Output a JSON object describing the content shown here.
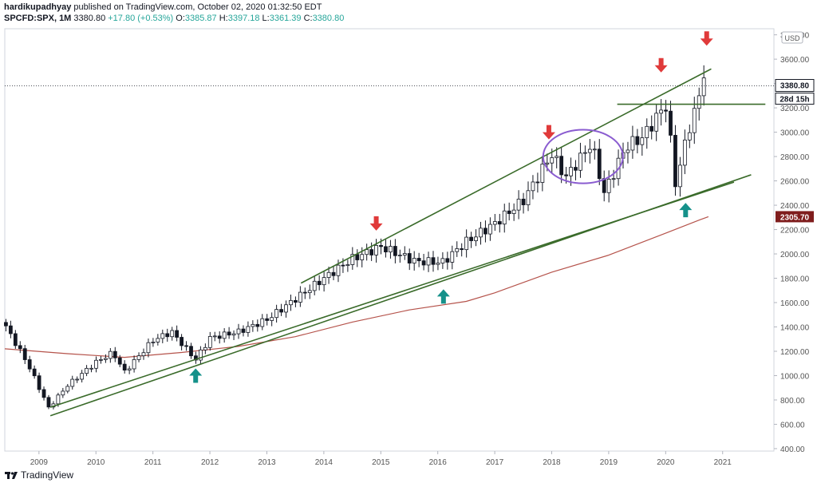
{
  "header": {
    "author": "hardikupadhyay",
    "published_text": "published on TradingView.com, October 02, 2020 01:32:50 EDT",
    "symbol": "SPCFD:SPX, 1M",
    "last": "3380.80",
    "change": "+17.80 (+0.53%)",
    "o_label": "O:",
    "o": "3385.87",
    "h_label": "H:",
    "h": "3397.18",
    "l_label": "L:",
    "l": "3361.39",
    "c_label": "C:",
    "c": "3380.80"
  },
  "footer": {
    "brand": "TradingView"
  },
  "colors": {
    "up": "#131722",
    "down": "#131722",
    "trend": "#3a6b2a",
    "ma": "#b5534b",
    "arrow_up": "#15918a",
    "arrow_down": "#e03a3a",
    "circle": "#8a5cd0",
    "last_tag": "#131722",
    "ma_tag": "#7f1d1d"
  },
  "chart_data": {
    "type": "candlestick",
    "currency": "USD",
    "y_ticks": [
      400,
      600,
      800,
      1000,
      1200,
      1400,
      1600,
      1800,
      2000,
      2200,
      2400,
      2600,
      2800,
      3000,
      3200,
      3400,
      3600,
      3800
    ],
    "x_ticks": [
      "2009",
      "2010",
      "2011",
      "2012",
      "2013",
      "2014",
      "2015",
      "2016",
      "2017",
      "2018",
      "2019",
      "2020",
      "2021"
    ],
    "last_price_label": "3380.80",
    "countdown_label": "28d 15h",
    "ma_price_label": "2305.70",
    "ylim": [
      380,
      3850
    ],
    "xlim": [
      2008.4,
      2021.9
    ],
    "candles_yearly_anchors": [
      {
        "t": 2008.42,
        "c": 1400
      },
      {
        "t": 2008.8,
        "c": 1100
      },
      {
        "t": 2009.17,
        "c": 735
      },
      {
        "t": 2009.5,
        "c": 920
      },
      {
        "t": 2010.0,
        "c": 1110
      },
      {
        "t": 2010.3,
        "c": 1190
      },
      {
        "t": 2010.5,
        "c": 1030
      },
      {
        "t": 2011.0,
        "c": 1290
      },
      {
        "t": 2011.33,
        "c": 1360
      },
      {
        "t": 2011.75,
        "c": 1130
      },
      {
        "t": 2012.0,
        "c": 1310
      },
      {
        "t": 2012.5,
        "c": 1360
      },
      {
        "t": 2013.0,
        "c": 1460
      },
      {
        "t": 2013.5,
        "c": 1630
      },
      {
        "t": 2014.0,
        "c": 1800
      },
      {
        "t": 2014.5,
        "c": 1960
      },
      {
        "t": 2015.0,
        "c": 2060
      },
      {
        "t": 2015.6,
        "c": 1940
      },
      {
        "t": 2016.08,
        "c": 1930
      },
      {
        "t": 2016.5,
        "c": 2100
      },
      {
        "t": 2017.0,
        "c": 2250
      },
      {
        "t": 2017.5,
        "c": 2440
      },
      {
        "t": 2018.0,
        "c": 2820
      },
      {
        "t": 2018.25,
        "c": 2630
      },
      {
        "t": 2018.7,
        "c": 2910
      },
      {
        "t": 2018.92,
        "c": 2500
      },
      {
        "t": 2019.3,
        "c": 2880
      },
      {
        "t": 2019.6,
        "c": 2960
      },
      {
        "t": 2020.0,
        "c": 3230
      },
      {
        "t": 2020.08,
        "c": 2950
      },
      {
        "t": 2020.17,
        "c": 2580
      },
      {
        "t": 2020.42,
        "c": 3050
      },
      {
        "t": 2020.58,
        "c": 3270
      },
      {
        "t": 2020.67,
        "c": 3500
      },
      {
        "t": 2020.75,
        "c": 3380
      }
    ],
    "moving_average": [
      {
        "t": 2008.4,
        "v": 1220
      },
      {
        "t": 2009.5,
        "v": 1180
      },
      {
        "t": 2010.5,
        "v": 1150
      },
      {
        "t": 2011.5,
        "v": 1190
      },
      {
        "t": 2012.5,
        "v": 1240
      },
      {
        "t": 2013.5,
        "v": 1320
      },
      {
        "t": 2014.5,
        "v": 1440
      },
      {
        "t": 2015.5,
        "v": 1540
      },
      {
        "t": 2016.5,
        "v": 1610
      },
      {
        "t": 2017.0,
        "v": 1680
      },
      {
        "t": 2018.0,
        "v": 1850
      },
      {
        "t": 2019.0,
        "v": 1990
      },
      {
        "t": 2020.0,
        "v": 2170
      },
      {
        "t": 2020.6,
        "v": 2280
      },
      {
        "t": 2020.75,
        "v": 2306
      }
    ],
    "trendlines": [
      {
        "t1": 2009.2,
        "v1": 740,
        "t2": 2021.2,
        "v2": 2590
      },
      {
        "t1": 2009.2,
        "v1": 670,
        "t2": 2021.5,
        "v2": 2650
      },
      {
        "t1": 2013.6,
        "v1": 1760,
        "t2": 2020.8,
        "v2": 3520
      },
      {
        "t1": 2019.15,
        "v1": 3230,
        "t2": 2021.75,
        "v2": 3230
      }
    ],
    "arrows_up": [
      {
        "t": 2011.75,
        "v": 1000
      },
      {
        "t": 2016.1,
        "v": 1650
      },
      {
        "t": 2020.35,
        "v": 2360
      }
    ],
    "arrows_down": [
      {
        "t": 2014.92,
        "v": 2250
      },
      {
        "t": 2017.95,
        "v": 3000
      },
      {
        "t": 2019.92,
        "v": 3550
      },
      {
        "t": 2020.72,
        "v": 3770
      }
    ],
    "ellipse": {
      "t": 2018.55,
      "v": 2800,
      "rt": 0.7,
      "rv": 220
    }
  }
}
